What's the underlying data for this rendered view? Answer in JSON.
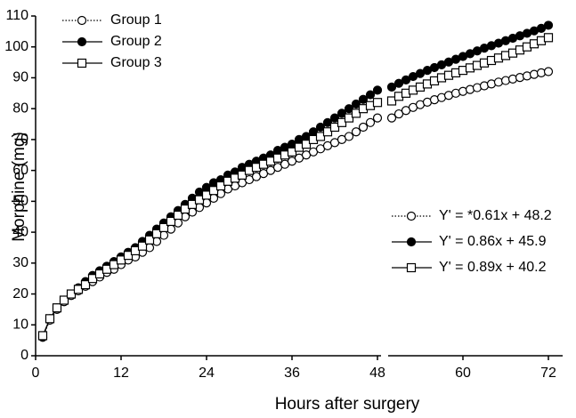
{
  "chart_data": {
    "type": "line",
    "xlabel": "Hours after surgery",
    "ylabel": "Morphine (mg)",
    "x": [
      1,
      2,
      3,
      4,
      5,
      6,
      7,
      8,
      9,
      10,
      11,
      12,
      13,
      14,
      15,
      16,
      17,
      18,
      19,
      20,
      21,
      22,
      23,
      24,
      25,
      26,
      27,
      28,
      29,
      30,
      31,
      32,
      33,
      34,
      35,
      36,
      37,
      38,
      39,
      40,
      41,
      42,
      43,
      44,
      45,
      46,
      47,
      48,
      49,
      50,
      51,
      52,
      53,
      54,
      55,
      56,
      57,
      58,
      59,
      60,
      61,
      62,
      63,
      64,
      65,
      66,
      67,
      68,
      69,
      70,
      71,
      72
    ],
    "series": [
      {
        "name": "Group 1",
        "color": "#000000",
        "line_style": "dotted",
        "marker": "circle-open",
        "values": [
          6,
          11.5,
          15,
          17.5,
          19.5,
          21,
          22.5,
          24,
          25.5,
          27,
          28,
          29.5,
          31,
          32,
          33.5,
          35,
          37,
          39,
          41,
          43,
          45,
          46.5,
          48,
          49.5,
          51,
          52.5,
          54,
          55,
          56,
          57,
          58,
          59,
          60,
          61,
          62,
          63,
          64,
          65,
          66,
          67,
          68,
          69,
          70,
          71,
          72.5,
          74,
          75.5,
          77,
          null,
          77,
          78.3,
          79.4,
          80.4,
          81.3,
          82.1,
          82.9,
          83.6,
          84.3,
          85,
          85.6,
          86.2,
          86.8,
          87.4,
          88,
          88.6,
          89.1,
          89.6,
          90.1,
          90.6,
          91.1,
          91.6,
          92
        ]
      },
      {
        "name": "Group 2",
        "color": "#000000",
        "line_style": "solid",
        "marker": "circle-filled",
        "values": [
          6,
          12,
          15.5,
          18,
          20,
          22,
          24,
          26,
          27.5,
          29,
          30.5,
          32,
          33.5,
          35,
          37,
          39,
          41,
          43,
          45,
          47,
          49,
          51,
          53,
          54.5,
          56,
          57,
          58.5,
          59.5,
          61,
          62,
          63,
          64,
          65,
          66.5,
          67.5,
          68.5,
          70,
          71,
          72.5,
          74,
          75.5,
          77,
          78.5,
          80,
          81.5,
          83,
          84.5,
          86,
          null,
          87,
          88.2,
          89.3,
          90.4,
          91.4,
          92.4,
          93.3,
          94.2,
          95.1,
          96,
          96.9,
          97.8,
          98.7,
          99.6,
          100.4,
          101.2,
          102,
          102.8,
          103.6,
          104.4,
          105.2,
          106,
          107
        ]
      },
      {
        "name": "Group 3",
        "color": "#000000",
        "line_style": "solid",
        "marker": "square-open",
        "values": [
          6.5,
          12,
          15.5,
          18,
          20,
          21.5,
          23,
          25,
          26.5,
          28,
          29.5,
          31,
          32.5,
          34,
          35.5,
          37.5,
          39.5,
          41.5,
          43.5,
          45.5,
          47.5,
          49,
          50.5,
          52,
          53.5,
          55,
          56.5,
          57.5,
          58.5,
          60,
          61,
          62,
          63,
          64,
          65,
          66,
          67.5,
          68.5,
          70,
          71,
          72.5,
          74,
          75.5,
          77,
          78.5,
          80,
          81,
          82,
          null,
          82.5,
          84,
          85,
          86,
          87,
          88,
          89,
          90,
          90.8,
          91.6,
          92.4,
          93.2,
          94,
          94.8,
          95.6,
          96.4,
          97.2,
          98,
          99,
          100,
          101,
          102,
          103
        ]
      }
    ],
    "equations": [
      "Y' = *0.61x + 48.2",
      "Y' = 0.86x + 45.9",
      "Y' = 0.89x + 40.2"
    ],
    "xlim": [
      0,
      74
    ],
    "xticks": [
      0,
      12,
      24,
      36,
      48,
      60,
      72
    ],
    "ylim": [
      0,
      110
    ],
    "yticks": [
      0,
      10,
      20,
      30,
      40,
      50,
      60,
      70,
      80,
      90,
      100,
      110
    ],
    "grid": false
  }
}
